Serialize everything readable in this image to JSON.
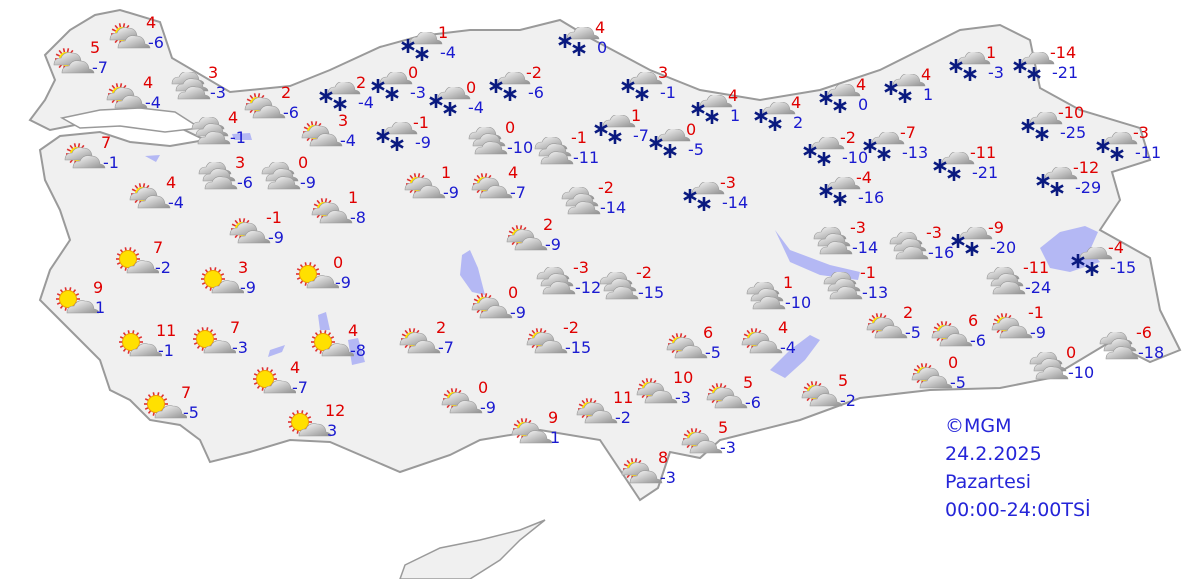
{
  "legend": {
    "copyright": "©MGM",
    "date": "24.2.2025",
    "day": "Pazartesi",
    "period": "00:00-24:00TSİ"
  },
  "colors": {
    "max_temp": "#e00000",
    "min_temp": "#1a1ad0",
    "land": "#f0f0f0",
    "border": "#9a9a9a",
    "water": "#b4b8f4"
  },
  "icon_types": {
    "sun-cloud": "partly cloudy",
    "sunny": "mostly sunny",
    "cloudy": "cloudy",
    "snow": "snow"
  },
  "stations": [
    {
      "icon": "sun-cloud",
      "max": "4",
      "min": "-6"
    },
    {
      "icon": "sun-cloud",
      "max": "5",
      "min": "-7"
    },
    {
      "icon": "sun-cloud",
      "max": "4",
      "min": "-4"
    },
    {
      "icon": "cloudy",
      "max": "3",
      "min": "-3"
    },
    {
      "icon": "cloudy",
      "max": "4",
      "min": "-1"
    },
    {
      "icon": "sun-cloud",
      "max": "2",
      "min": "-6"
    },
    {
      "icon": "sun-cloud",
      "max": "3",
      "min": "-4"
    },
    {
      "icon": "sun-cloud",
      "max": "7",
      "min": "-1"
    },
    {
      "icon": "cloudy",
      "max": "3",
      "min": "-6"
    },
    {
      "icon": "cloudy",
      "max": "0",
      "min": "-9"
    },
    {
      "icon": "sun-cloud",
      "max": "4",
      "min": "-4"
    },
    {
      "icon": "sun-cloud",
      "max": "-1",
      "min": "-9"
    },
    {
      "icon": "sun-cloud",
      "max": "1",
      "min": "-8"
    },
    {
      "icon": "snow",
      "max": "1",
      "min": "-4"
    },
    {
      "icon": "snow",
      "max": "2",
      "min": "-4"
    },
    {
      "icon": "snow",
      "max": "0",
      "min": "-3"
    },
    {
      "icon": "snow",
      "max": "0",
      "min": "-4"
    },
    {
      "icon": "snow",
      "max": "-1",
      "min": "-9"
    },
    {
      "icon": "snow",
      "max": "-2",
      "min": "-6"
    },
    {
      "icon": "snow",
      "max": "4",
      "min": "0"
    },
    {
      "icon": "snow",
      "max": "3",
      "min": "-1"
    },
    {
      "icon": "snow",
      "max": "4",
      "min": "1"
    },
    {
      "icon": "snow",
      "max": "4",
      "min": "2"
    },
    {
      "icon": "cloudy",
      "max": "0",
      "min": "-10"
    },
    {
      "icon": "cloudy",
      "max": "-1",
      "min": "-11"
    },
    {
      "icon": "snow",
      "max": "1",
      "min": "-7"
    },
    {
      "icon": "snow",
      "max": "0",
      "min": "-5"
    },
    {
      "icon": "snow",
      "max": "-3",
      "min": "-14"
    },
    {
      "icon": "sun-cloud",
      "max": "1",
      "min": "-9"
    },
    {
      "icon": "sun-cloud",
      "max": "4",
      "min": "-7"
    },
    {
      "icon": "cloudy",
      "max": "-2",
      "min": "-14"
    },
    {
      "icon": "snow",
      "max": "4",
      "min": "0"
    },
    {
      "icon": "snow",
      "max": "4",
      "min": "1"
    },
    {
      "icon": "snow",
      "max": "1",
      "min": "-3"
    },
    {
      "icon": "snow",
      "max": "-14",
      "min": "-21"
    },
    {
      "icon": "snow",
      "max": "-2",
      "min": "-10"
    },
    {
      "icon": "snow",
      "max": "-7",
      "min": "-13"
    },
    {
      "icon": "snow",
      "max": "-11",
      "min": "-21"
    },
    {
      "icon": "snow",
      "max": "-10",
      "min": "-25"
    },
    {
      "icon": "snow",
      "max": "-3",
      "min": "-11"
    },
    {
      "icon": "snow",
      "max": "-12",
      "min": "-29"
    },
    {
      "icon": "snow",
      "max": "-4",
      "min": "-16"
    },
    {
      "icon": "cloudy",
      "max": "-3",
      "min": "-14"
    },
    {
      "icon": "cloudy",
      "max": "-3",
      "min": "-16"
    },
    {
      "icon": "snow",
      "max": "-9",
      "min": "-20"
    },
    {
      "icon": "snow",
      "max": "-4",
      "min": "-15"
    },
    {
      "icon": "cloudy",
      "max": "-11",
      "min": "-24"
    },
    {
      "icon": "sun-cloud",
      "max": "2",
      "min": "-9"
    },
    {
      "icon": "cloudy",
      "max": "-3",
      "min": "-12"
    },
    {
      "icon": "cloudy",
      "max": "-2",
      "min": "-15"
    },
    {
      "icon": "sun-cloud",
      "max": "0",
      "min": "-9"
    },
    {
      "icon": "sun-cloud",
      "max": "-2",
      "min": "-15"
    },
    {
      "icon": "sun-cloud",
      "max": "2",
      "min": "-7"
    },
    {
      "icon": "sun-cloud",
      "max": "0",
      "min": "-9"
    },
    {
      "icon": "sun-cloud",
      "max": "9",
      "min": "1"
    },
    {
      "icon": "sun-cloud",
      "max": "11",
      "min": "-2"
    },
    {
      "icon": "sun-cloud",
      "max": "10",
      "min": "-3"
    },
    {
      "icon": "sun-cloud",
      "max": "5",
      "min": "-6"
    },
    {
      "icon": "sun-cloud",
      "max": "5",
      "min": "-3"
    },
    {
      "icon": "sun-cloud",
      "max": "8",
      "min": "-3"
    },
    {
      "icon": "sun-cloud",
      "max": "6",
      "min": "-5"
    },
    {
      "icon": "sun-cloud",
      "max": "4",
      "min": "-4"
    },
    {
      "icon": "cloudy",
      "max": "1",
      "min": "-10"
    },
    {
      "icon": "cloudy",
      "max": "-1",
      "min": "-13"
    },
    {
      "icon": "sun-cloud",
      "max": "2",
      "min": "-5"
    },
    {
      "icon": "sun-cloud",
      "max": "6",
      "min": "-6"
    },
    {
      "icon": "sun-cloud",
      "max": "-1",
      "min": "-9"
    },
    {
      "icon": "sun-cloud",
      "max": "0",
      "min": "-5"
    },
    {
      "icon": "sun-cloud",
      "max": "5",
      "min": "-2"
    },
    {
      "icon": "cloudy",
      "max": "0",
      "min": "-10"
    },
    {
      "icon": "cloudy",
      "max": "-6",
      "min": "-18"
    },
    {
      "icon": "sunny",
      "max": "7",
      "min": "-2"
    },
    {
      "icon": "sunny",
      "max": "9",
      "min": "1"
    },
    {
      "icon": "sunny",
      "max": "3",
      "min": "-9"
    },
    {
      "icon": "sunny",
      "max": "0",
      "min": "-9"
    },
    {
      "icon": "sunny",
      "max": "11",
      "min": "-1"
    },
    {
      "icon": "sunny",
      "max": "7",
      "min": "-3"
    },
    {
      "icon": "sunny",
      "max": "4",
      "min": "-8"
    },
    {
      "icon": "sunny",
      "max": "4",
      "min": "-7"
    },
    {
      "icon": "sunny",
      "max": "7",
      "min": "-5"
    },
    {
      "icon": "sunny",
      "max": "12",
      "min": "3"
    }
  ]
}
